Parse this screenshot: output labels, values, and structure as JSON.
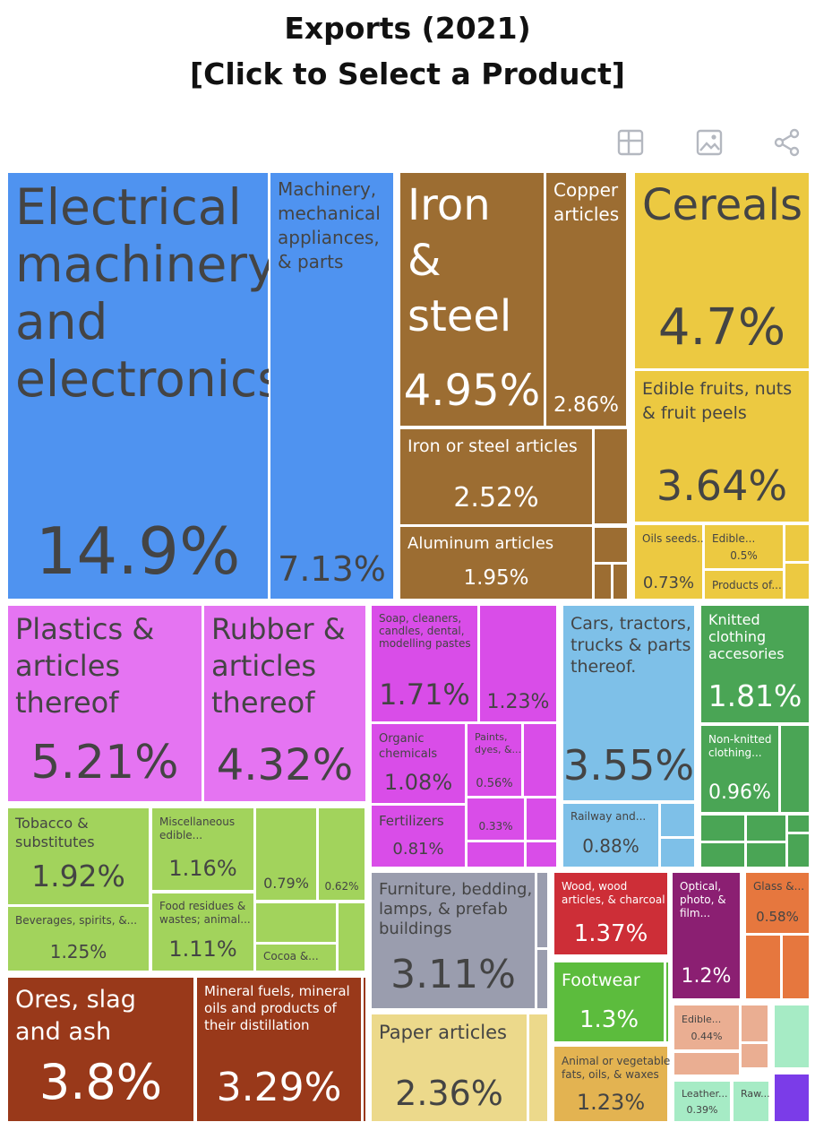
{
  "header": {
    "title": "Exports (2021)",
    "subtitle": "[Click to Select a Product]"
  },
  "toolbar": {
    "icons": [
      "table-icon",
      "image-icon",
      "share-icon"
    ]
  },
  "chart_data": {
    "type": "treemap",
    "title": "Exports (2021)",
    "subtitle": "[Click to Select a Product]",
    "unit": "% of total exports",
    "colors": {
      "machinery": "#4f93f0",
      "metals": "#9c6d32",
      "vegetable": "#ecc941",
      "plastics": "#e574f2",
      "chemicals": "#d94de8",
      "transport": "#7ec0e8",
      "textiles": "#4aa555",
      "foodstuffs": "#a2d35c",
      "mineral": "#99391a",
      "misc": "#9a9dae",
      "paper": "#ecd98b",
      "wood": "#cd2e37",
      "footwear": "#5cbc3d",
      "animal_fats": "#e3b351",
      "instruments": "#8b1f72",
      "stone_glass": "#e6773e",
      "animal_products": "#eaae92",
      "hides": "#a6ebc5",
      "other": "#7b3ce8"
    },
    "items": [
      {
        "name": "Electrical machinery and electronics",
        "value": 14.9,
        "label": "14.9%",
        "group": "machinery"
      },
      {
        "name": "Machinery, mechanical appliances, & parts",
        "value": 7.13,
        "label": "7.13%",
        "group": "machinery"
      },
      {
        "name": "Iron & steel",
        "value": 4.95,
        "label": "4.95%",
        "group": "metals"
      },
      {
        "name": "Copper articles",
        "value": 2.86,
        "label": "2.86%",
        "group": "metals"
      },
      {
        "name": "Iron or steel articles",
        "value": 2.52,
        "label": "2.52%",
        "group": "metals"
      },
      {
        "name": "Aluminum articles",
        "value": 1.95,
        "label": "1.95%",
        "group": "metals"
      },
      {
        "name": "Cereals",
        "value": 4.7,
        "label": "4.7%",
        "group": "vegetable"
      },
      {
        "name": "Edible fruits, nuts & fruit peels",
        "value": 3.64,
        "label": "3.64%",
        "group": "vegetable"
      },
      {
        "name": "Oils seeds...",
        "value": 0.73,
        "label": "0.73%",
        "group": "vegetable"
      },
      {
        "name": "Edible...",
        "value": 0.5,
        "label": "0.5%",
        "group": "vegetable"
      },
      {
        "name": "Products of...",
        "value": null,
        "label": "",
        "group": "vegetable"
      },
      {
        "name": "Plastics & articles thereof",
        "value": 5.21,
        "label": "5.21%",
        "group": "plastics"
      },
      {
        "name": "Rubber & articles thereof",
        "value": 4.32,
        "label": "4.32%",
        "group": "plastics"
      },
      {
        "name": "Soap, cleaners, candles, dental, modelling pastes",
        "value": 1.71,
        "label": "1.71%",
        "group": "chemicals"
      },
      {
        "name": "",
        "value": 1.23,
        "label": "1.23%",
        "group": "chemicals"
      },
      {
        "name": "Organic chemicals",
        "value": 1.08,
        "label": "1.08%",
        "group": "chemicals"
      },
      {
        "name": "Paints, dyes, &...",
        "value": 0.56,
        "label": "0.56%",
        "group": "chemicals"
      },
      {
        "name": "",
        "value": 0.33,
        "label": "0.33%",
        "group": "chemicals"
      },
      {
        "name": "Fertilizers",
        "value": 0.81,
        "label": "0.81%",
        "group": "chemicals"
      },
      {
        "name": "Cars, tractors, trucks & parts thereof.",
        "value": 3.55,
        "label": "3.55%",
        "group": "transport"
      },
      {
        "name": "Railway and...",
        "value": 0.88,
        "label": "0.88%",
        "group": "transport"
      },
      {
        "name": "Knitted clothing accesories",
        "value": 1.81,
        "label": "1.81%",
        "group": "textiles"
      },
      {
        "name": "Non-knitted clothing...",
        "value": 0.96,
        "label": "0.96%",
        "group": "textiles"
      },
      {
        "name": "Tobacco & substitutes",
        "value": 1.92,
        "label": "1.92%",
        "group": "foodstuffs"
      },
      {
        "name": "Miscellaneous edible...",
        "value": 1.16,
        "label": "1.16%",
        "group": "foodstuffs"
      },
      {
        "name": "",
        "value": 0.79,
        "label": "0.79%",
        "group": "foodstuffs"
      },
      {
        "name": "",
        "value": 0.62,
        "label": "0.62%",
        "group": "foodstuffs"
      },
      {
        "name": "Beverages, spirits, &...",
        "value": 1.25,
        "label": "1.25%",
        "group": "foodstuffs"
      },
      {
        "name": "Food residues & wastes; animal...",
        "value": 1.11,
        "label": "1.11%",
        "group": "foodstuffs"
      },
      {
        "name": "Cocoa &...",
        "value": null,
        "label": "",
        "group": "foodstuffs"
      },
      {
        "name": "Ores, slag and ash",
        "value": 3.8,
        "label": "3.8%",
        "group": "mineral"
      },
      {
        "name": "Mineral fuels, mineral oils and products of their distillation",
        "value": 3.29,
        "label": "3.29%",
        "group": "mineral"
      },
      {
        "name": "Furniture, bedding, lamps, & prefab buildings",
        "value": 3.11,
        "label": "3.11%",
        "group": "misc"
      },
      {
        "name": "Paper articles",
        "value": 2.36,
        "label": "2.36%",
        "group": "paper"
      },
      {
        "name": "Wood, wood articles, & charcoal",
        "value": 1.37,
        "label": "1.37%",
        "group": "wood"
      },
      {
        "name": "Footwear",
        "value": 1.3,
        "label": "1.3%",
        "group": "footwear"
      },
      {
        "name": "Animal or vegetable fats, oils, & waxes",
        "value": 1.23,
        "label": "1.23%",
        "group": "animal_fats"
      },
      {
        "name": "Optical, photo, & film...",
        "value": 1.2,
        "label": "1.2%",
        "group": "instruments"
      },
      {
        "name": "Glass &...",
        "value": 0.58,
        "label": "0.58%",
        "group": "stone_glass"
      },
      {
        "name": "Edible...",
        "value": 0.44,
        "label": "0.44%",
        "group": "animal_products"
      },
      {
        "name": "Leather...",
        "value": 0.39,
        "label": "0.39%",
        "group": "hides"
      },
      {
        "name": "Raw...",
        "value": null,
        "label": "",
        "group": "hides"
      }
    ]
  }
}
